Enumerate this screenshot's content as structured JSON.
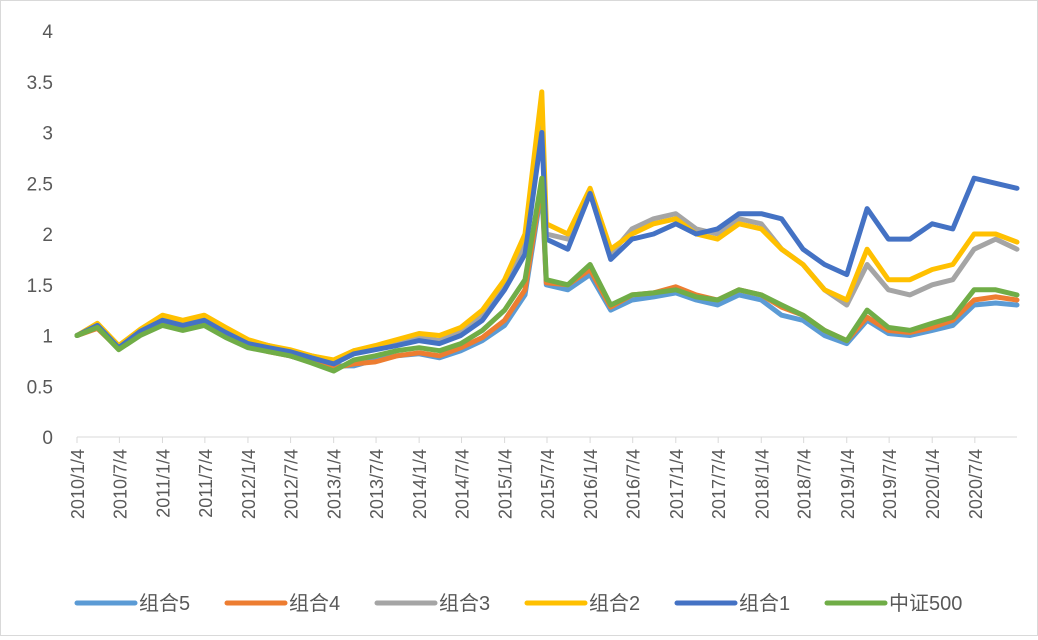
{
  "chart_data": {
    "type": "line",
    "title": "",
    "xlabel": "",
    "ylabel": "",
    "ylim": [
      0,
      4
    ],
    "y_ticks": [
      "0",
      "0.5",
      "1",
      "1.5",
      "2",
      "2.5",
      "3",
      "3.5",
      "4"
    ],
    "x_tick_labels": [
      "2010/1/4",
      "2010/7/4",
      "2011/1/4",
      "2011/7/4",
      "2012/1/4",
      "2012/7/4",
      "2013/1/4",
      "2013/7/4",
      "2014/1/4",
      "2014/7/4",
      "2015/1/4",
      "2015/7/4",
      "2016/1/4",
      "2016/7/4",
      "2017/1/4",
      "2017/7/4",
      "2018/1/4",
      "2018/7/4",
      "2019/1/4",
      "2019/7/4",
      "2020/1/4",
      "2020/7/4"
    ],
    "x": [
      "2010/1/4",
      "2010/4/1",
      "2010/7/1",
      "2010/10/1",
      "2011/1/4",
      "2011/4/1",
      "2011/7/1",
      "2011/10/1",
      "2012/1/4",
      "2012/4/1",
      "2012/7/1",
      "2012/10/1",
      "2013/1/4",
      "2013/4/1",
      "2013/7/1",
      "2013/10/1",
      "2014/1/4",
      "2014/4/1",
      "2014/7/1",
      "2014/10/1",
      "2015/1/4",
      "2015/4/1",
      "2015/6/12",
      "2015/7/1",
      "2015/10/1",
      "2016/1/4",
      "2016/4/1",
      "2016/7/1",
      "2016/10/1",
      "2017/1/4",
      "2017/4/1",
      "2017/7/1",
      "2017/10/1",
      "2018/1/4",
      "2018/4/1",
      "2018/7/1",
      "2018/10/1",
      "2019/1/4",
      "2019/4/1",
      "2019/7/1",
      "2019/10/1",
      "2020/1/4",
      "2020/4/1",
      "2020/7/1",
      "2020/10/1",
      "2020/12/31"
    ],
    "grid": false,
    "legend_position": "bottom",
    "series": [
      {
        "name": "组合5",
        "color": "#5B9BD5",
        "values": [
          1.0,
          1.08,
          0.88,
          1.02,
          1.12,
          1.08,
          1.12,
          1.0,
          0.9,
          0.85,
          0.8,
          0.74,
          0.7,
          0.7,
          0.76,
          0.8,
          0.82,
          0.78,
          0.85,
          0.95,
          1.1,
          1.4,
          2.45,
          1.5,
          1.45,
          1.6,
          1.25,
          1.35,
          1.38,
          1.42,
          1.35,
          1.3,
          1.4,
          1.35,
          1.2,
          1.15,
          1.0,
          0.92,
          1.15,
          1.02,
          1.0,
          1.05,
          1.1,
          1.3,
          1.32,
          1.3
        ]
      },
      {
        "name": "组合4",
        "color": "#ED7D31",
        "values": [
          1.0,
          1.07,
          0.87,
          1.02,
          1.12,
          1.08,
          1.12,
          1.0,
          0.9,
          0.84,
          0.8,
          0.74,
          0.68,
          0.72,
          0.74,
          0.8,
          0.83,
          0.8,
          0.88,
          0.98,
          1.15,
          1.45,
          2.5,
          1.52,
          1.5,
          1.65,
          1.28,
          1.4,
          1.42,
          1.48,
          1.4,
          1.35,
          1.45,
          1.4,
          1.28,
          1.2,
          1.05,
          0.95,
          1.18,
          1.05,
          1.03,
          1.08,
          1.15,
          1.35,
          1.38,
          1.35
        ]
      },
      {
        "name": "组合3",
        "color": "#A5A5A5",
        "values": [
          1.0,
          1.1,
          0.9,
          1.05,
          1.18,
          1.12,
          1.18,
          1.05,
          0.95,
          0.9,
          0.85,
          0.8,
          0.75,
          0.85,
          0.88,
          0.95,
          0.98,
          0.95,
          1.05,
          1.2,
          1.5,
          1.9,
          3.15,
          2.0,
          1.95,
          2.4,
          1.8,
          2.05,
          2.15,
          2.2,
          2.05,
          2.0,
          2.15,
          2.1,
          1.85,
          1.7,
          1.45,
          1.3,
          1.7,
          1.45,
          1.4,
          1.5,
          1.55,
          1.85,
          1.95,
          1.85
        ]
      },
      {
        "name": "组合2",
        "color": "#FFC000",
        "values": [
          1.0,
          1.12,
          0.9,
          1.06,
          1.2,
          1.15,
          1.2,
          1.08,
          0.96,
          0.9,
          0.86,
          0.8,
          0.76,
          0.85,
          0.9,
          0.96,
          1.02,
          1.0,
          1.08,
          1.25,
          1.55,
          2.0,
          3.4,
          2.1,
          2.0,
          2.45,
          1.85,
          2.0,
          2.1,
          2.15,
          2.0,
          1.95,
          2.1,
          2.05,
          1.85,
          1.7,
          1.45,
          1.35,
          1.85,
          1.55,
          1.55,
          1.65,
          1.7,
          2.0,
          2.0,
          1.92
        ]
      },
      {
        "name": "组合1",
        "color": "#4472C4",
        "values": [
          1.0,
          1.1,
          0.88,
          1.04,
          1.15,
          1.1,
          1.15,
          1.03,
          0.92,
          0.88,
          0.84,
          0.78,
          0.72,
          0.82,
          0.86,
          0.9,
          0.95,
          0.92,
          1.0,
          1.15,
          1.45,
          1.8,
          3.0,
          1.95,
          1.85,
          2.4,
          1.75,
          1.95,
          2.0,
          2.1,
          2.0,
          2.05,
          2.2,
          2.2,
          2.15,
          1.85,
          1.7,
          1.6,
          2.25,
          1.95,
          1.95,
          2.1,
          2.05,
          2.55,
          2.5,
          2.45
        ]
      },
      {
        "name": "中证500",
        "color": "#70AD47",
        "values": [
          1.0,
          1.08,
          0.86,
          1.0,
          1.1,
          1.05,
          1.1,
          0.98,
          0.88,
          0.84,
          0.8,
          0.73,
          0.65,
          0.76,
          0.8,
          0.85,
          0.88,
          0.85,
          0.92,
          1.05,
          1.25,
          1.55,
          2.55,
          1.55,
          1.5,
          1.7,
          1.3,
          1.4,
          1.42,
          1.45,
          1.38,
          1.35,
          1.45,
          1.4,
          1.3,
          1.2,
          1.05,
          0.95,
          1.25,
          1.08,
          1.05,
          1.12,
          1.18,
          1.45,
          1.45,
          1.4
        ]
      }
    ]
  }
}
